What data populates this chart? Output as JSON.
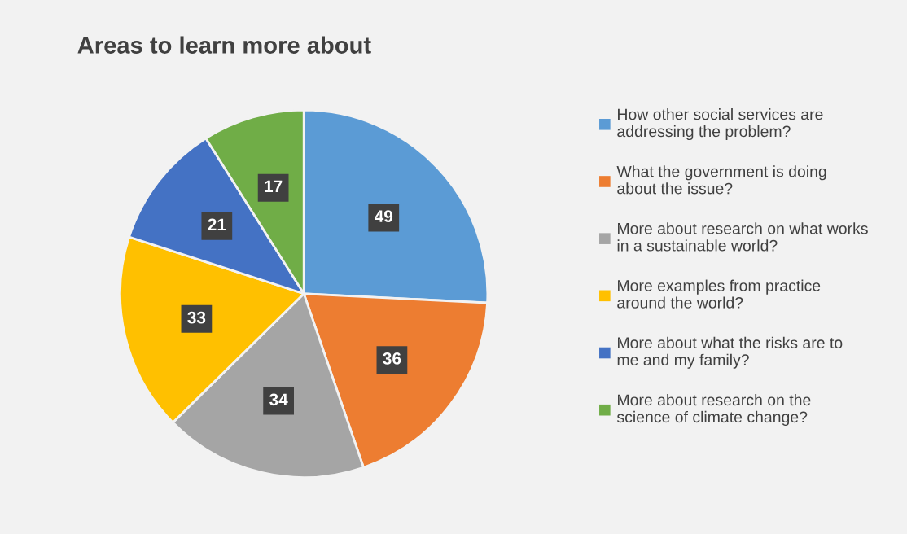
{
  "chart_data": {
    "type": "pie",
    "title": "Areas to learn more about",
    "categories": [
      "How other social services are addressing the problem?",
      "What the government is doing about the issue?",
      "More about research on what works in a sustainable world?",
      "More examples from practice around the world?",
      "More about what the risks are to me and my family?",
      "More about research on the science of climate change?"
    ],
    "values": [
      49,
      36,
      34,
      33,
      21,
      17
    ],
    "colors": [
      "#5b9bd5",
      "#ed7d31",
      "#a5a5a5",
      "#ffc000",
      "#4472c4",
      "#70ad47"
    ],
    "data_labels": true,
    "legend": "right"
  }
}
